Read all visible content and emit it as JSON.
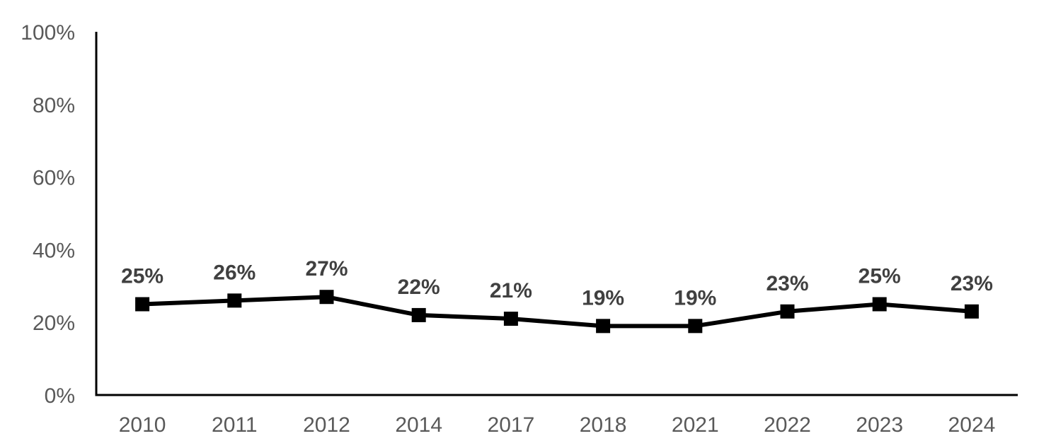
{
  "chart_data": {
    "type": "line",
    "title": "",
    "xlabel": "",
    "ylabel": "",
    "categories": [
      "2010",
      "2011",
      "2012",
      "2014",
      "2017",
      "2018",
      "2021",
      "2022",
      "2023",
      "2024"
    ],
    "series": [
      {
        "values": [
          25,
          26,
          27,
          22,
          21,
          19,
          19,
          23,
          25,
          23
        ],
        "data_labels": [
          "25%",
          "26%",
          "27%",
          "22%",
          "21%",
          "19%",
          "19%",
          "23%",
          "25%",
          "23%"
        ],
        "color": "#000000",
        "marker": "square"
      }
    ],
    "y_ticks": [
      0,
      20,
      40,
      60,
      80,
      100
    ],
    "y_tick_labels": [
      "0%",
      "20%",
      "40%",
      "60%",
      "80%",
      "100%"
    ],
    "ylim": [
      0,
      100
    ],
    "grid": false,
    "legend": "none"
  },
  "colors": {
    "line": "#000000",
    "axis": "#000000",
    "tick_text": "#595959",
    "label_text": "#404040"
  }
}
